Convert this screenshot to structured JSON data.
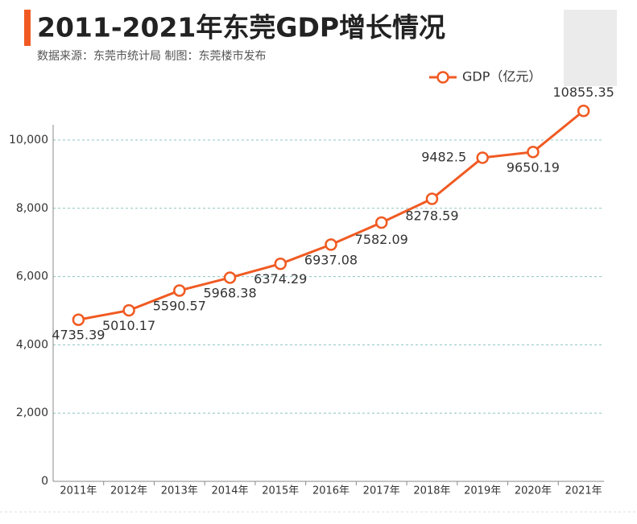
{
  "chart_data": {
    "type": "line",
    "title": "2011-2021年东莞GDP增长情况",
    "subtitle": "数据来源：东莞市统计局    制图：东莞楼市发布",
    "categories": [
      "2011年",
      "2012年",
      "2013年",
      "2014年",
      "2015年",
      "2016年",
      "2017年",
      "2018年",
      "2019年",
      "2020年",
      "2021年"
    ],
    "series": [
      {
        "name": "GDP（亿元）",
        "color": "#f05a22",
        "values": [
          4735.39,
          5010.17,
          5590.57,
          5968.38,
          6374.29,
          6937.08,
          7582.09,
          8278.59,
          9482.5,
          9650.19,
          10855.35
        ]
      }
    ],
    "ylim": [
      0,
      11000
    ],
    "yticks": [
      0,
      {
        "value": 2000,
        "label": "2,000"
      },
      {
        "value": 4000,
        "label": "4,000"
      },
      {
        "value": 6000,
        "label": "6,000"
      },
      {
        "value": 8000,
        "label": "8,000"
      },
      {
        "value": 10000,
        "label": "10,000"
      }
    ],
    "grid": true,
    "legend": "top-right"
  }
}
